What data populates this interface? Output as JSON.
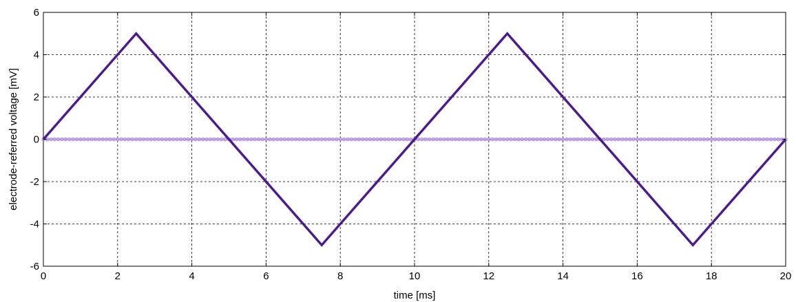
{
  "chart_data": {
    "type": "line",
    "title": "",
    "xlabel": "time [ms]",
    "ylabel": "electrode-referred voltage [mV]",
    "xlim": [
      0,
      20
    ],
    "ylim": [
      -6,
      6
    ],
    "xticks": [
      0,
      2,
      4,
      6,
      8,
      10,
      12,
      14,
      16,
      18,
      20
    ],
    "yticks": [
      -6,
      -4,
      -2,
      0,
      2,
      4,
      6
    ],
    "grid": true,
    "grid_style": "dashed",
    "legend": "none",
    "series": [
      {
        "color": "#4a1c8c",
        "style": "solid-thick",
        "x": [
          0,
          2.5,
          7.5,
          12.5,
          17.5,
          20
        ],
        "y": [
          0,
          5,
          -5,
          5,
          -5,
          0
        ]
      },
      {
        "color": "#b08ee0",
        "style": "marked",
        "x": [
          0,
          20
        ],
        "y": [
          0,
          0
        ]
      }
    ]
  }
}
